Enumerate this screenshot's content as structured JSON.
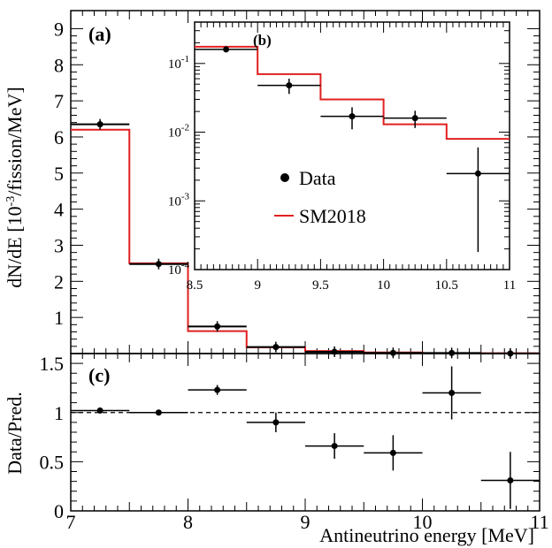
{
  "chart_data": [
    {
      "panel": "(a)",
      "type": "step-with-points",
      "ylabel": "dN/dE [10⁻³/fission/MeV]",
      "xlim": [
        7,
        11
      ],
      "ylim": [
        0,
        9.5
      ],
      "yticks": [
        "1",
        "2",
        "3",
        "4",
        "5",
        "6",
        "7",
        "8",
        "9"
      ],
      "bin_edges": [
        7,
        7.5,
        8,
        8.5,
        9,
        9.5,
        10,
        10.5,
        11
      ],
      "series": [
        {
          "name": "Data",
          "values": [
            6.35,
            2.48,
            0.75,
            0.18,
            0.05,
            0.018,
            0.016,
            0.003
          ],
          "color": "#000000"
        },
        {
          "name": "SM2018",
          "values": [
            6.2,
            2.5,
            0.62,
            0.17,
            0.07,
            0.03,
            0.013,
            0.008
          ],
          "color": "#e02020"
        }
      ]
    },
    {
      "panel": "(b)",
      "type": "step-with-points",
      "yscale": "log",
      "xlim": [
        8.5,
        11
      ],
      "ylim": [
        0.0001,
        0.4
      ],
      "xticks": [
        "8.5",
        "9",
        "9.5",
        "10",
        "10.5",
        "11"
      ],
      "bin_edges": [
        8.5,
        9,
        9.5,
        10,
        10.5,
        11
      ],
      "series": [
        {
          "name": "Data",
          "values": [
            0.16,
            0.048,
            0.017,
            0.016,
            0.0025
          ],
          "err_low": [
            0.012,
            0.012,
            0.006,
            0.0045,
            0.00232
          ],
          "err_high": [
            0.012,
            0.012,
            0.006,
            0.0045,
            0.0035
          ]
        },
        {
          "name": "SM2018",
          "values": [
            0.175,
            0.07,
            0.03,
            0.013,
            0.008
          ]
        }
      ],
      "legend": {
        "position": "center-left",
        "entries": [
          "Data",
          "SM2018"
        ]
      }
    },
    {
      "panel": "(c)",
      "type": "scatter-with-errors",
      "xlabel": "Antineutrino energy [MeV]",
      "ylabel": "Data/Pred.",
      "xlim": [
        7,
        11
      ],
      "ylim": [
        0,
        1.6
      ],
      "xticks": [
        "7",
        "8",
        "9",
        "10",
        "11"
      ],
      "yticks": [
        "0",
        "0.5",
        "1",
        "1.5"
      ],
      "reference_line": 1,
      "points": [
        {
          "x": 7.25,
          "xerr": 0.25,
          "y": 1.02,
          "yerr": 0.01
        },
        {
          "x": 7.75,
          "xerr": 0.25,
          "y": 1.0,
          "yerr": 0.01
        },
        {
          "x": 8.25,
          "xerr": 0.25,
          "y": 1.23,
          "yerr": 0.05
        },
        {
          "x": 8.75,
          "xerr": 0.25,
          "y": 0.9,
          "yerr": 0.1
        },
        {
          "x": 9.25,
          "xerr": 0.25,
          "y": 0.66,
          "yerr": 0.13
        },
        {
          "x": 9.75,
          "xerr": 0.25,
          "y": 0.59,
          "yerr": 0.18
        },
        {
          "x": 10.25,
          "xerr": 0.25,
          "y": 1.2,
          "yerr": 0.27
        },
        {
          "x": 10.75,
          "xerr": 0.25,
          "y": 0.31,
          "yerr": 0.29
        }
      ]
    }
  ]
}
